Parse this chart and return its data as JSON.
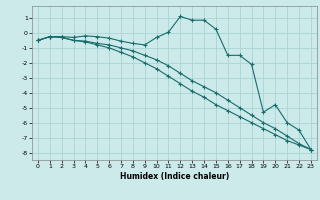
{
  "xlabel": "Humidex (Indice chaleur)",
  "ylabel": "",
  "background_color": "#cceaea",
  "grid_color": "#aad4d4",
  "line_color": "#1a6b6b",
  "xlim": [
    -0.5,
    23.5
  ],
  "ylim": [
    -8.5,
    1.8
  ],
  "xticks": [
    0,
    1,
    2,
    3,
    4,
    5,
    6,
    7,
    8,
    9,
    10,
    11,
    12,
    13,
    14,
    15,
    16,
    17,
    18,
    19,
    20,
    21,
    22,
    23
  ],
  "yticks": [
    -8,
    -7,
    -6,
    -5,
    -4,
    -3,
    -2,
    -1,
    0,
    1
  ],
  "line1_x": [
    0,
    1,
    2,
    3,
    4,
    5,
    6,
    7,
    8,
    9,
    10,
    11,
    12,
    13,
    14,
    15,
    16,
    17,
    18,
    19,
    20,
    21,
    22,
    23
  ],
  "line1_y": [
    -0.5,
    -0.25,
    -0.25,
    -0.3,
    -0.2,
    -0.25,
    -0.35,
    -0.55,
    -0.7,
    -0.8,
    -0.3,
    0.05,
    1.1,
    0.85,
    0.85,
    0.25,
    -1.5,
    -1.5,
    -2.1,
    -5.3,
    -4.8,
    -6.0,
    -6.5,
    -7.8
  ],
  "line2_x": [
    0,
    1,
    2,
    3,
    4,
    5,
    6,
    7,
    8,
    9,
    10,
    11,
    12,
    13,
    14,
    15,
    16,
    17,
    18,
    19,
    20,
    21,
    22,
    23
  ],
  "line2_y": [
    -0.5,
    -0.25,
    -0.3,
    -0.5,
    -0.55,
    -0.7,
    -0.8,
    -1.0,
    -1.2,
    -1.5,
    -1.8,
    -2.2,
    -2.7,
    -3.2,
    -3.6,
    -4.0,
    -4.5,
    -5.0,
    -5.5,
    -6.0,
    -6.4,
    -6.9,
    -7.4,
    -7.8
  ],
  "line3_x": [
    0,
    1,
    2,
    3,
    4,
    5,
    6,
    7,
    8,
    9,
    10,
    11,
    12,
    13,
    14,
    15,
    16,
    17,
    18,
    19,
    20,
    21,
    22,
    23
  ],
  "line3_y": [
    -0.5,
    -0.25,
    -0.3,
    -0.5,
    -0.6,
    -0.8,
    -1.0,
    -1.3,
    -1.6,
    -2.0,
    -2.4,
    -2.9,
    -3.4,
    -3.9,
    -4.3,
    -4.8,
    -5.2,
    -5.6,
    -6.0,
    -6.4,
    -6.8,
    -7.2,
    -7.5,
    -7.8
  ]
}
